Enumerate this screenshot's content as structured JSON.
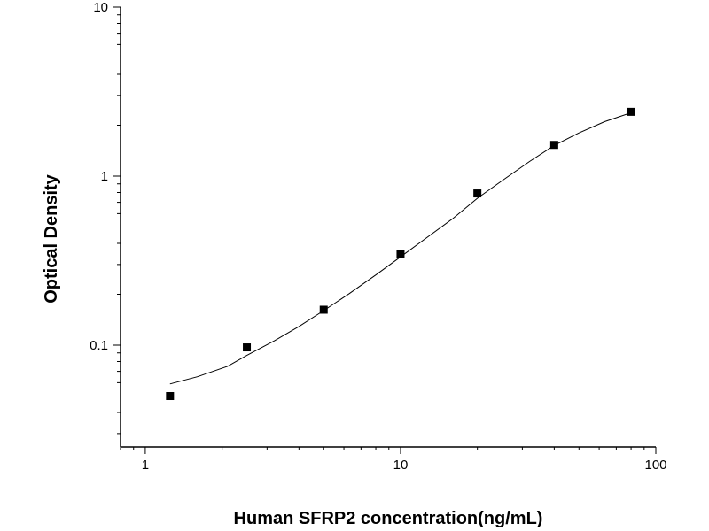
{
  "chart_data": {
    "type": "scatter",
    "title": "",
    "xlabel": "Human SFRP2 concentration(ng/mL)",
    "ylabel": "Optical Density",
    "x_scale": "log",
    "y_scale": "log",
    "xlim": [
      0.8,
      100
    ],
    "ylim": [
      0.025,
      10
    ],
    "grid": false,
    "legend": "none",
    "x_ticks": [
      {
        "value": 1,
        "label": "1"
      },
      {
        "value": 10,
        "label": "10"
      },
      {
        "value": 100,
        "label": "100"
      }
    ],
    "y_ticks": [
      {
        "value": 0.1,
        "label": "0.1"
      },
      {
        "value": 1,
        "label": "1"
      },
      {
        "value": 10,
        "label": "10"
      }
    ],
    "series": [
      {
        "marker": "square",
        "color": "#000000",
        "points": [
          {
            "x": 1.25,
            "y": 0.05
          },
          {
            "x": 2.5,
            "y": 0.097
          },
          {
            "x": 5,
            "y": 0.162
          },
          {
            "x": 10,
            "y": 0.345
          },
          {
            "x": 20,
            "y": 0.79
          },
          {
            "x": 40,
            "y": 1.53
          },
          {
            "x": 80,
            "y": 2.4
          }
        ]
      },
      {
        "marker": "none",
        "line": "fitted-curve",
        "color": "#000000",
        "points": [
          {
            "x": 1.25,
            "y": 0.059
          },
          {
            "x": 1.6,
            "y": 0.065
          },
          {
            "x": 2.1,
            "y": 0.075
          },
          {
            "x": 2.5,
            "y": 0.087
          },
          {
            "x": 3.2,
            "y": 0.106
          },
          {
            "x": 4,
            "y": 0.129
          },
          {
            "x": 5,
            "y": 0.16
          },
          {
            "x": 6.3,
            "y": 0.202
          },
          {
            "x": 8,
            "y": 0.26
          },
          {
            "x": 10,
            "y": 0.333
          },
          {
            "x": 12.6,
            "y": 0.43
          },
          {
            "x": 16,
            "y": 0.56
          },
          {
            "x": 20,
            "y": 0.74
          },
          {
            "x": 25,
            "y": 0.94
          },
          {
            "x": 32,
            "y": 1.22
          },
          {
            "x": 40,
            "y": 1.52
          },
          {
            "x": 50,
            "y": 1.8
          },
          {
            "x": 63,
            "y": 2.1
          },
          {
            "x": 80,
            "y": 2.37
          }
        ]
      }
    ]
  }
}
